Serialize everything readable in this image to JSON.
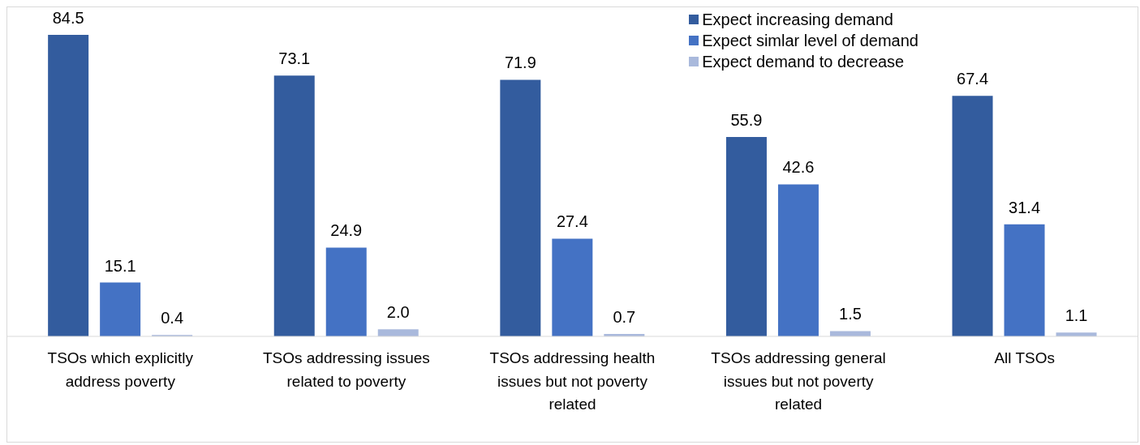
{
  "chart_data": {
    "type": "bar",
    "categories": [
      "TSOs which explicitly address poverty",
      "TSOs addressing issues related to poverty",
      "TSOs addressing health issues but not poverty related",
      "TSOs addressing general issues but not poverty related",
      "All TSOs"
    ],
    "series": [
      {
        "name": "Expect increasing demand",
        "color": "#335c9e",
        "values": [
          84.5,
          73.1,
          71.9,
          55.9,
          67.4
        ],
        "value_labels": [
          "84.5",
          "73.1",
          "71.9",
          "55.9",
          "67.4"
        ]
      },
      {
        "name": "Expect simlar level of demand",
        "color": "#4472c4",
        "values": [
          15.1,
          24.9,
          27.4,
          42.6,
          31.4
        ],
        "value_labels": [
          "15.1",
          "24.9",
          "27.4",
          "42.6",
          "31.4"
        ]
      },
      {
        "name": "Expect demand to decrease",
        "color": "#a9b9dc",
        "values": [
          0.4,
          2.0,
          0.7,
          1.5,
          1.1
        ],
        "value_labels": [
          "0.4",
          "2.0",
          "0.7",
          "1.5",
          "1.1"
        ]
      }
    ],
    "legend": "top right",
    "grid": false
  }
}
